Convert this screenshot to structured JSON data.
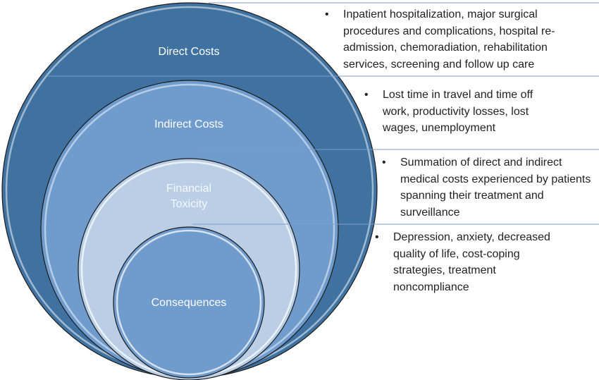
{
  "circles": [
    {
      "label": "Direct Costs",
      "color": "#3f72a0"
    },
    {
      "label": "Indirect Costs",
      "color": "#6f9bcd"
    },
    {
      "label_lines": [
        "Financial",
        "Toxicity"
      ],
      "color": "#bacfe6"
    },
    {
      "label": "Consequences",
      "color": "#6f9bcd"
    }
  ],
  "line_color": "#7d9cc9",
  "descriptions": [
    "Inpatient hospitalization, major surgical procedures and complications, hospital re-admission, chemoradiation, rehabilitation services, screening and follow up care",
    "Lost time in travel and time off work, productivity losses, lost wages, unemployment",
    "Summation of direct and indirect medical costs experienced by patients spanning their treatment and surveillance",
    "Depression, anxiety, decreased quality of life, cost-coping strategies, treatment noncompliance"
  ],
  "bullet": "•"
}
